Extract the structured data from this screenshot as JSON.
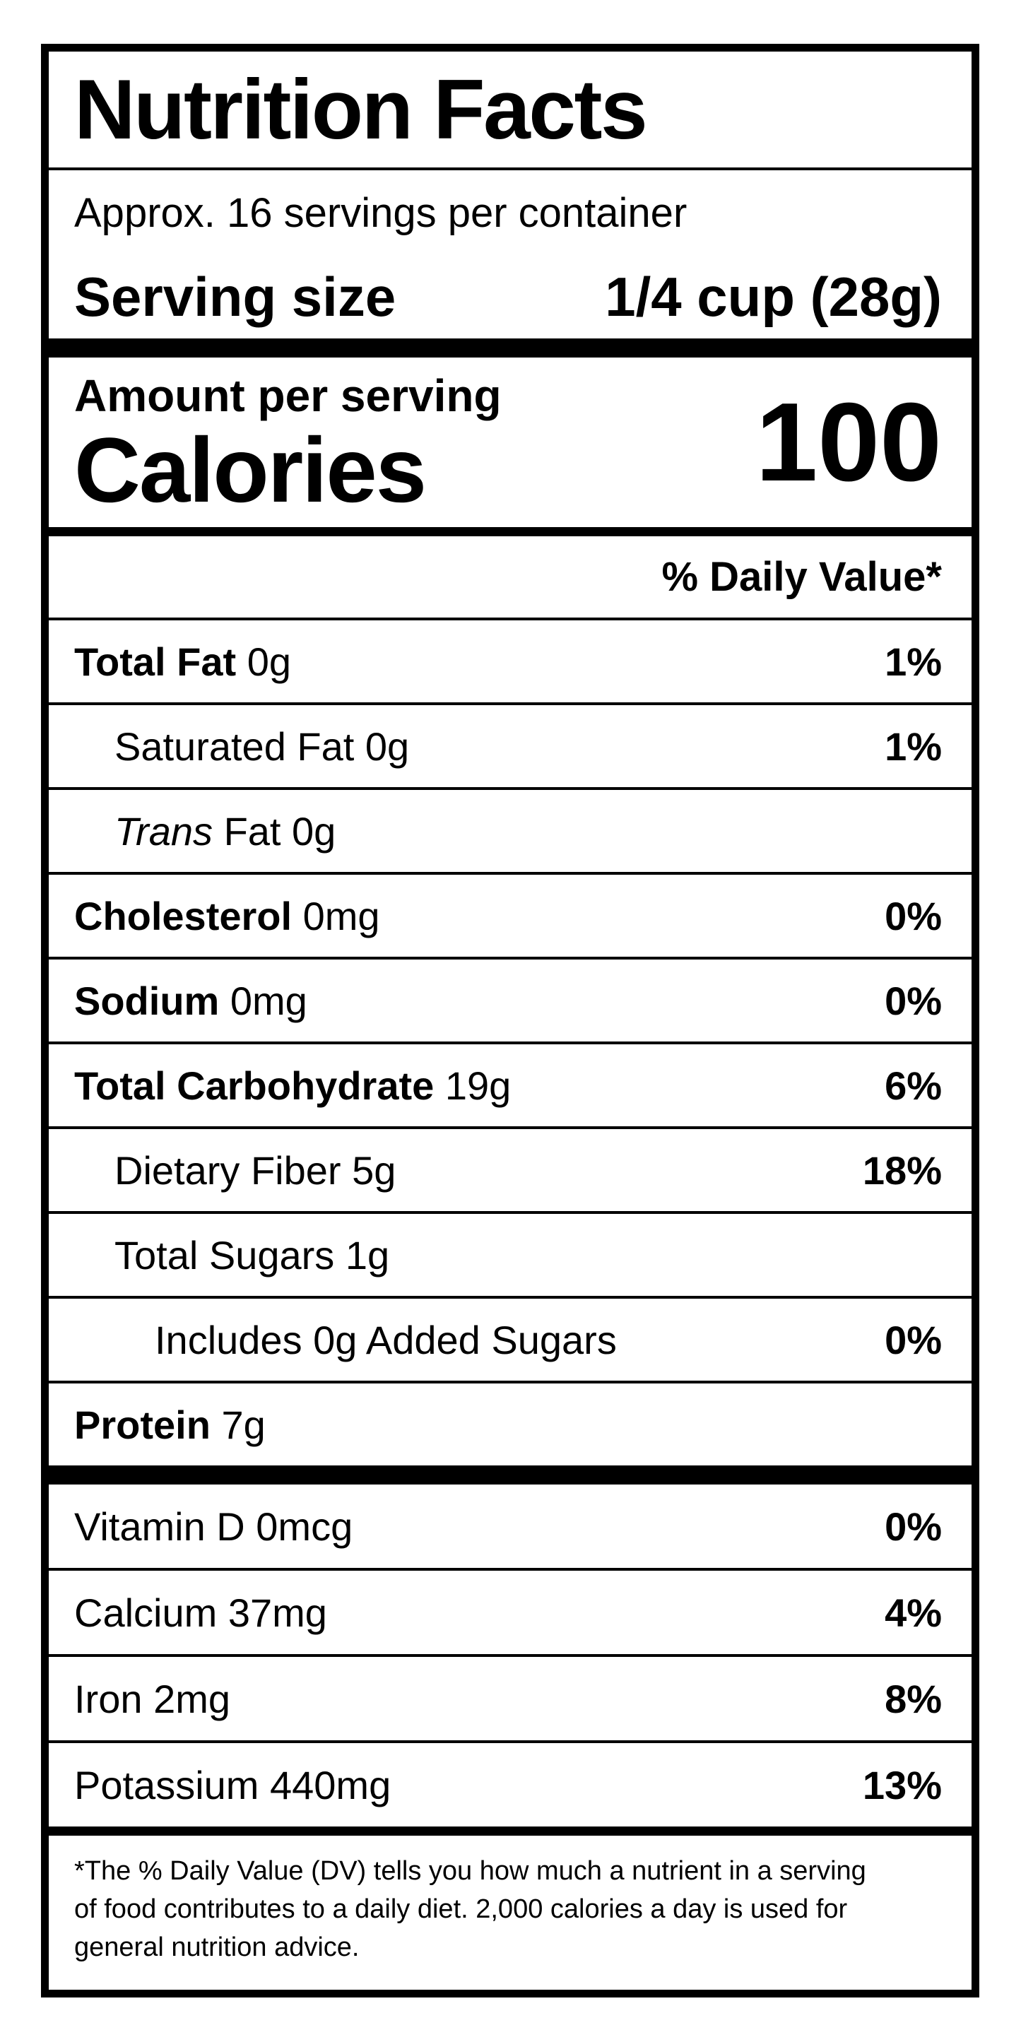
{
  "colors": {
    "ink": "#000000",
    "paper": "#ffffff"
  },
  "label": {
    "title": "Nutrition Facts",
    "servings_per_container": "Approx. 16 servings per container",
    "serving_size": {
      "label": "Serving size",
      "value": "1/4 cup (28g)"
    },
    "calories": {
      "eyebrow": "Amount per serving",
      "label": "Calories",
      "value": "100"
    },
    "daily_value_header": "% Daily Value*",
    "nutrients": [
      {
        "name": "Total Fat",
        "amount": "0g",
        "dv": "1%",
        "indent": 0,
        "name_style": "bold"
      },
      {
        "name": "Saturated Fat",
        "amount": "0g",
        "dv": "1%",
        "indent": 1,
        "name_style": "regular"
      },
      {
        "name": "Trans",
        "amount": "Fat 0g",
        "dv": "",
        "indent": 1,
        "name_style": "italic"
      },
      {
        "name": "Cholesterol",
        "amount": "0mg",
        "dv": "0%",
        "indent": 0,
        "name_style": "bold"
      },
      {
        "name": "Sodium",
        "amount": "0mg",
        "dv": "0%",
        "indent": 0,
        "name_style": "bold"
      },
      {
        "name": "Total Carbohydrate",
        "amount": "19g",
        "dv": "6%",
        "indent": 0,
        "name_style": "bold"
      },
      {
        "name": "Dietary Fiber",
        "amount": "5g",
        "dv": "18%",
        "indent": 1,
        "name_style": "regular"
      },
      {
        "name": "Total Sugars",
        "amount": "1g",
        "dv": "",
        "indent": 1,
        "name_style": "regular"
      },
      {
        "name": "Includes 0g Added Sugars",
        "amount": "",
        "dv": "0%",
        "indent": 2,
        "name_style": "regular"
      },
      {
        "name": "Protein",
        "amount": "7g",
        "dv": "",
        "indent": 0,
        "name_style": "bold"
      }
    ],
    "vitamins": [
      {
        "name": "Vitamin D",
        "amount": "0mcg",
        "dv": "0%"
      },
      {
        "name": "Calcium",
        "amount": "37mg",
        "dv": "4%"
      },
      {
        "name": "Iron",
        "amount": "2mg",
        "dv": "8%"
      },
      {
        "name": "Potassium",
        "amount": "440mg",
        "dv": "13%"
      }
    ],
    "footnote": "*The % Daily Value (DV) tells you how much a nutrient in a serving of food contributes to a daily diet. 2,000 calories a day is used for general nutrition advice."
  }
}
